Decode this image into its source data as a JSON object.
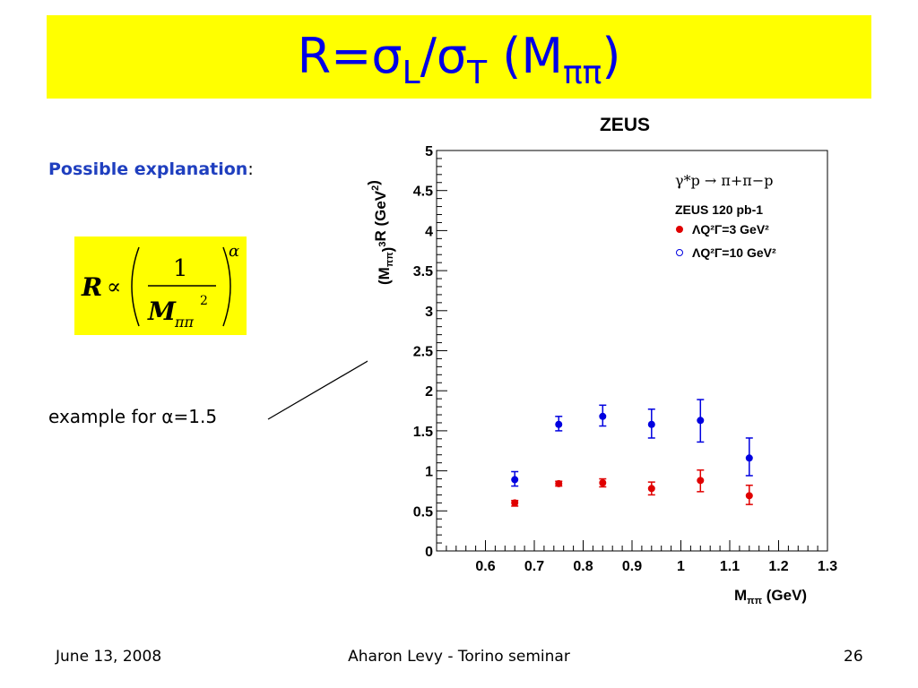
{
  "slide": {
    "title_R": "R=",
    "title_sigma1": "σ",
    "title_sub_L": "L",
    "title_slash": "/",
    "title_sigma2": "σ",
    "title_sub_T": "T",
    "title_open": " (M",
    "title_sub_pipi": "ππ",
    "title_close": ")",
    "explanation_label": "Possible explanation",
    "explanation_colon": ":",
    "formula": {
      "lhs": "R",
      "relation": "∝",
      "numerator": "1",
      "denominator": "M",
      "denominator_sub": "ππ",
      "denominator_sup": "2",
      "exponent": "α"
    },
    "example_text": "example for α=1.5",
    "footer_date": "June 13, 2008",
    "footer_center": "Aharon Levy - Torino seminar",
    "footer_page": "26",
    "colors": {
      "title_bg": "#ffff00",
      "title_text": "#0000e6",
      "explanation_text": "#1f3fbf"
    }
  },
  "chart_data": {
    "type": "scatter",
    "title": "ZEUS",
    "xlabel": "M_ππ (GeV)",
    "ylabel": "(M_ππ)^3 R (GeV^2)",
    "xlim": [
      0.5,
      1.3
    ],
    "ylim": [
      0,
      5
    ],
    "x_ticks": [
      "0.6",
      "0.7",
      "0.8",
      "0.9",
      "1",
      "1.1",
      "1.2",
      "1.3"
    ],
    "y_ticks": [
      "0",
      "0.5",
      "1",
      "1.5",
      "2",
      "2.5",
      "3",
      "3.5",
      "4",
      "4.5",
      "5"
    ],
    "legend": {
      "process": "γ*p → π+π−p",
      "lumi": "ZEUS 120 pb-1"
    },
    "series": [
      {
        "name": "ΛQ²Γ=3 GeV²",
        "color": "#e00000",
        "marker": "filled-circle",
        "points": [
          {
            "x": 0.66,
            "y": 0.6,
            "err_lo": 0.04,
            "err_hi": 0.03
          },
          {
            "x": 0.75,
            "y": 0.84,
            "err_lo": 0.03,
            "err_hi": 0.03
          },
          {
            "x": 0.84,
            "y": 0.85,
            "err_lo": 0.05,
            "err_hi": 0.05
          },
          {
            "x": 0.94,
            "y": 0.78,
            "err_lo": 0.08,
            "err_hi": 0.08
          },
          {
            "x": 1.04,
            "y": 0.88,
            "err_lo": 0.14,
            "err_hi": 0.13
          },
          {
            "x": 1.14,
            "y": 0.69,
            "err_lo": 0.11,
            "err_hi": 0.13
          }
        ]
      },
      {
        "name": "ΛQ²Γ=10 GeV²",
        "color": "#0000e0",
        "marker": "filled-circle",
        "points": [
          {
            "x": 0.66,
            "y": 0.89,
            "err_lo": 0.08,
            "err_hi": 0.1
          },
          {
            "x": 0.75,
            "y": 1.58,
            "err_lo": 0.08,
            "err_hi": 0.1
          },
          {
            "x": 0.84,
            "y": 1.68,
            "err_lo": 0.12,
            "err_hi": 0.14
          },
          {
            "x": 0.94,
            "y": 1.58,
            "err_lo": 0.17,
            "err_hi": 0.19
          },
          {
            "x": 1.04,
            "y": 1.63,
            "err_lo": 0.27,
            "err_hi": 0.26
          },
          {
            "x": 1.14,
            "y": 1.16,
            "err_lo": 0.22,
            "err_hi": 0.25
          }
        ]
      }
    ],
    "grid": false
  }
}
